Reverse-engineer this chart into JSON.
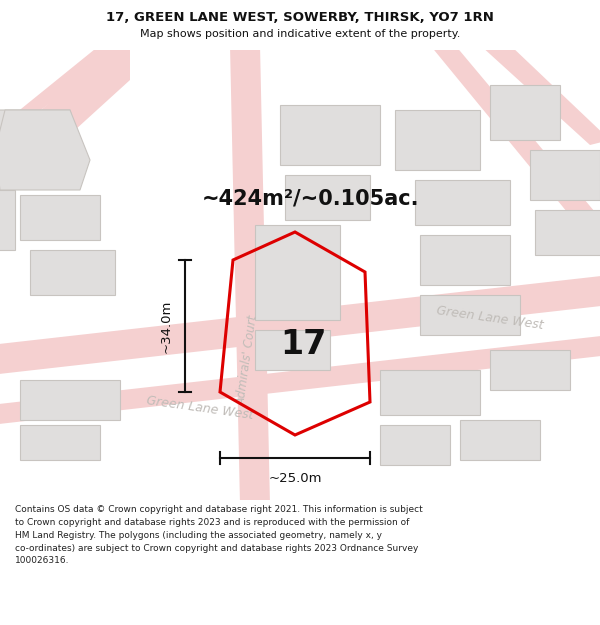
{
  "title_line1": "17, GREEN LANE WEST, SOWERBY, THIRSK, YO7 1RN",
  "title_line2": "Map shows position and indicative extent of the property.",
  "area_text": "~424m²/~0.105ac.",
  "dim_vertical": "~34.0m",
  "dim_horizontal": "~25.0m",
  "label_17": "17",
  "street_admirals": "Admirals' Court",
  "street_glw_upper": "Green Lane West",
  "street_glw_lower": "Green Lane West",
  "footer_lines": [
    "Contains OS data © Crown copyright and database right 2021. This information is subject",
    "to Crown copyright and database rights 2023 and is reproduced with the permission of",
    "HM Land Registry. The polygons (including the associated geometry, namely x, y",
    "co-ordinates) are subject to Crown copyright and database rights 2023 Ordnance Survey",
    "100026316."
  ],
  "map_bg": "#f5f2ef",
  "road_color": "#f5d0d0",
  "road_outline": "#e8b0b0",
  "building_fill": "#e0dedd",
  "building_edge": "#c8c4c0",
  "property_color": "#dd0000",
  "dim_color": "#111111",
  "street_label_color": "#c0bcb8",
  "title_color": "#111111",
  "footer_color": "#222222"
}
